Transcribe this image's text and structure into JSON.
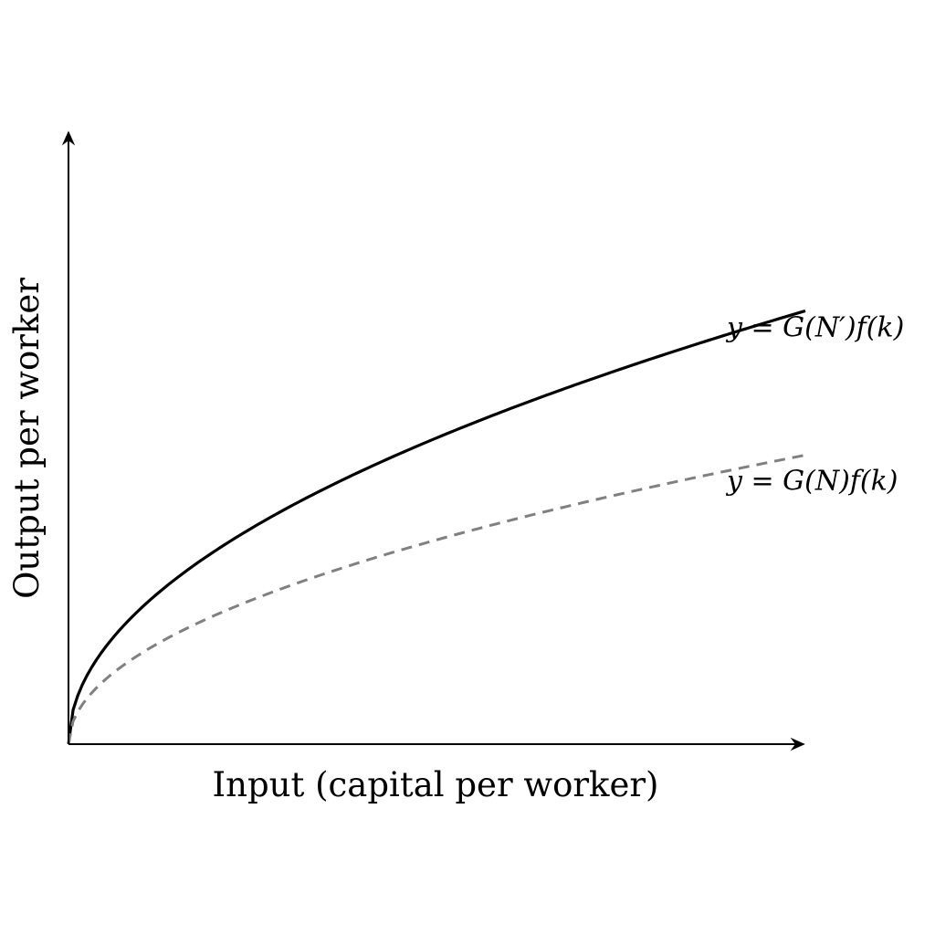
{
  "chart_data": {
    "type": "line",
    "title": "",
    "xlabel": "Input (capital per worker)",
    "ylabel": "Output per worker",
    "grid": false,
    "xlim": [
      0,
      1
    ],
    "ylim": [
      0,
      1
    ],
    "series": [
      {
        "name": "y = G(N′)f(k)",
        "style": "solid",
        "color": "#000000",
        "exponent": 0.5,
        "x": [
          0,
          0.01,
          0.05,
          0.1,
          0.2,
          0.3,
          0.4,
          0.5,
          0.6,
          0.7,
          0.8,
          0.9,
          1.0
        ],
        "y": [
          0,
          0.07,
          0.157,
          0.222,
          0.314,
          0.385,
          0.445,
          0.497,
          0.545,
          0.588,
          0.629,
          0.667,
          0.703
        ]
      },
      {
        "name": "y = G(N)f(k)",
        "style": "dashed",
        "color": "#808080",
        "exponent": 0.5,
        "x": [
          0,
          0.01,
          0.05,
          0.1,
          0.2,
          0.3,
          0.4,
          0.5,
          0.6,
          0.7,
          0.8,
          0.9,
          1.0
        ],
        "y": [
          0,
          0.047,
          0.105,
          0.148,
          0.21,
          0.257,
          0.296,
          0.331,
          0.363,
          0.392,
          0.419,
          0.445,
          0.469
        ]
      }
    ]
  }
}
